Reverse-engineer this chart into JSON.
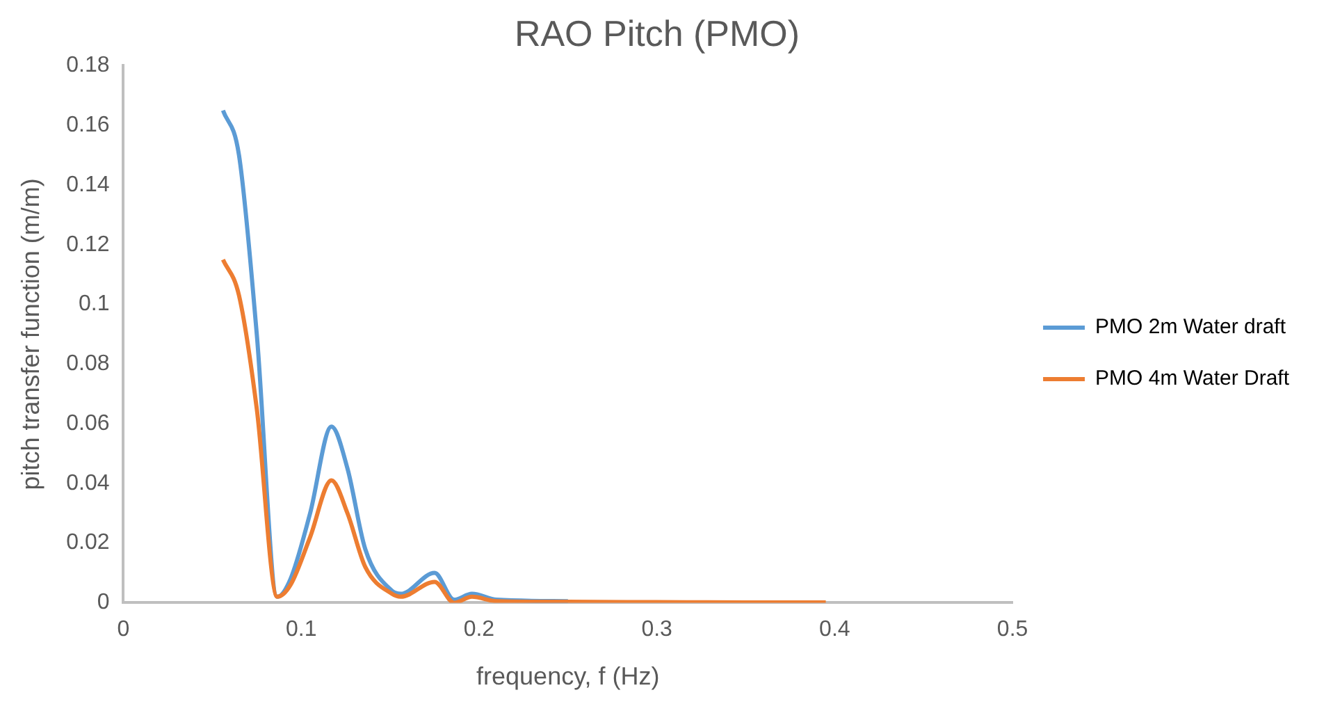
{
  "chart_data": {
    "type": "line",
    "title": "RAO Pitch (PMO)",
    "xlabel": "frequency, f (Hz)",
    "ylabel": "pitch transfer function (m/m)",
    "x": [
      0.056,
      0.065,
      0.075,
      0.0865,
      0.094,
      0.105,
      0.117,
      0.126,
      0.136,
      0.151,
      0.156,
      0.175,
      0.186,
      0.196,
      0.21,
      0.25,
      0.3,
      0.35,
      0.395
    ],
    "series": [
      {
        "name": "PMO 2m Water draft",
        "color": "#5b9bd5",
        "values": [
          0.165,
          0.15,
          0.09,
          0.002,
          0.008,
          0.03,
          0.059,
          0.045,
          0.018,
          0.004,
          0.003,
          0.01,
          0.001,
          0.003,
          0.001,
          0.0005,
          null,
          null,
          null
        ]
      },
      {
        "name": "PMO 4m Water Draft",
        "color": "#ed7d31",
        "values": [
          0.115,
          0.103,
          0.065,
          0.002,
          0.006,
          0.022,
          0.041,
          0.03,
          0.012,
          0.003,
          0.002,
          0.007,
          0.0,
          0.002,
          0.0005,
          0.0003,
          0.0002,
          0.0001,
          0.0001
        ]
      }
    ],
    "xlim": [
      0,
      0.5
    ],
    "xticks": [
      0,
      0.1,
      0.2,
      0.3,
      0.4,
      0.5
    ],
    "ylim": [
      0,
      0.18
    ],
    "yticks": [
      0,
      0.02,
      0.04,
      0.06,
      0.08,
      0.1,
      0.12,
      0.14,
      0.16,
      0.18
    ],
    "grid": false,
    "legend": "right",
    "marker": "none",
    "line_style": "solid"
  }
}
